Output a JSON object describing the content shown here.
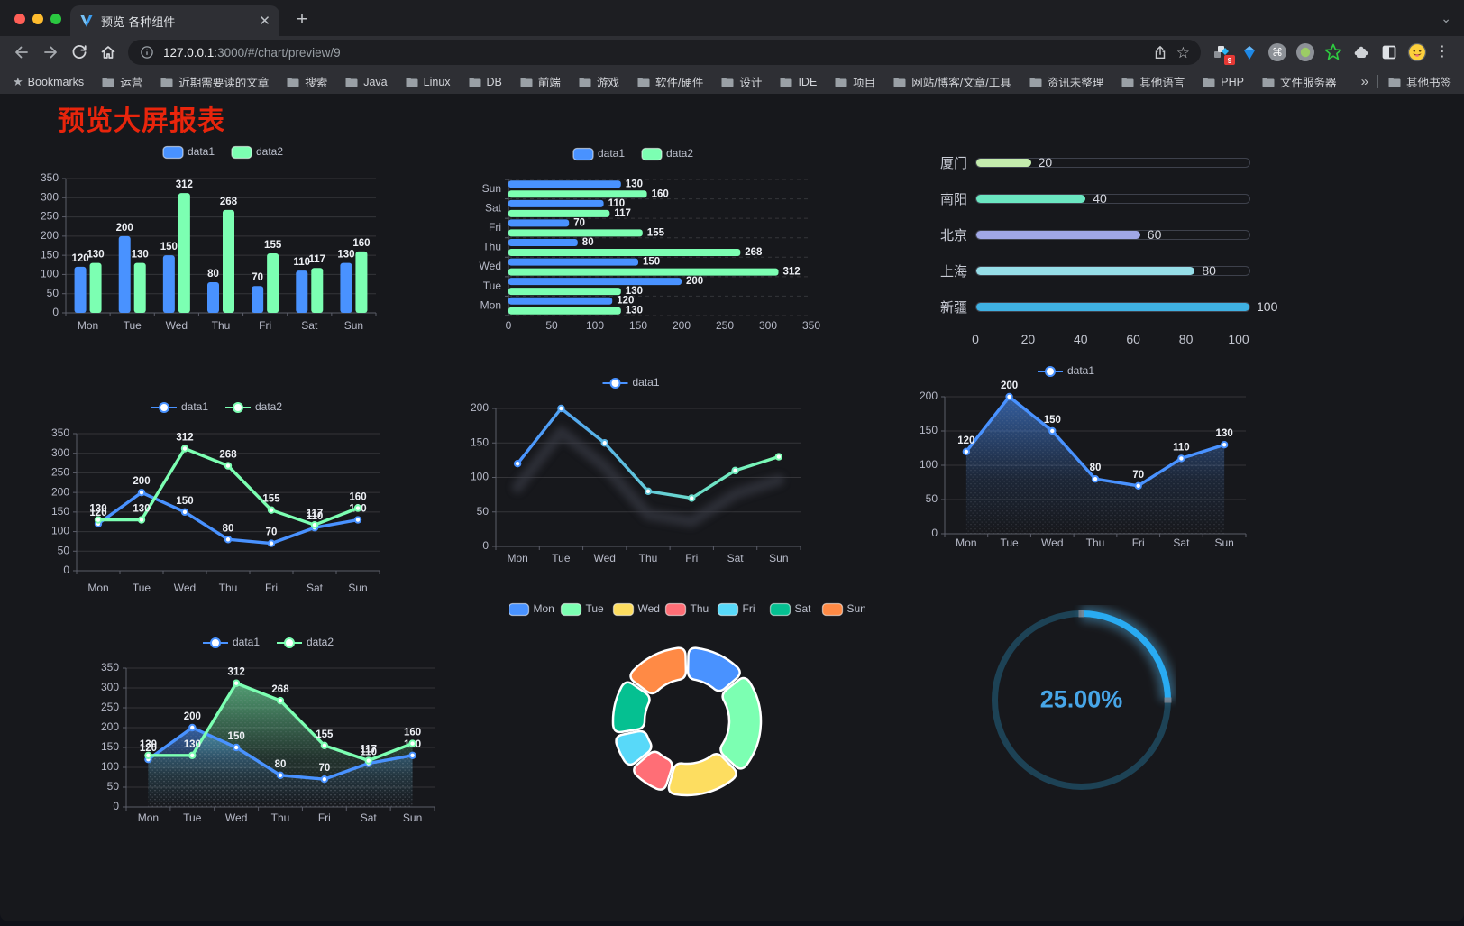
{
  "browser": {
    "tab": {
      "title": "预览-各种组件"
    },
    "url": {
      "host": "127.0.0.1",
      "path": ":3000/#/chart/preview/9"
    },
    "extension_badge": "9",
    "bookmarks_bar": {
      "root_label": "Bookmarks",
      "folders": [
        "运营",
        "近期需要读的文章",
        "搜索",
        "Java",
        "Linux",
        "DB",
        "前端",
        "游戏",
        "软件/硬件",
        "设计",
        "IDE",
        "项目",
        "网站/博客/文章/工具",
        "资讯未整理",
        "其他语言",
        "PHP",
        "文件服务器"
      ],
      "overflow_symbol": "»",
      "other_label": "其他书签"
    }
  },
  "page": {
    "title": "预览大屏报表",
    "title_color": "#e8250c",
    "background": "#17181c"
  },
  "chart_data": [
    {
      "id": "bar-grouped-vertical",
      "type": "bar",
      "categories": [
        "Mon",
        "Tue",
        "Wed",
        "Thu",
        "Fri",
        "Sat",
        "Sun"
      ],
      "series": [
        {
          "name": "data1",
          "color": "#4992ff",
          "values": [
            120,
            200,
            150,
            80,
            70,
            110,
            130
          ]
        },
        {
          "name": "data2",
          "color": "#7cffb2",
          "values": [
            130,
            130,
            312,
            268,
            155,
            117,
            160
          ]
        }
      ],
      "ylim": [
        0,
        350
      ],
      "ytick_step": 50,
      "show_labels": true,
      "legend_position": "top",
      "grid": true
    },
    {
      "id": "bar-grouped-horizontal",
      "type": "bar",
      "orientation": "horizontal",
      "categories": [
        "Mon",
        "Tue",
        "Wed",
        "Thu",
        "Fri",
        "Sat",
        "Sun"
      ],
      "series": [
        {
          "name": "data1",
          "color": "#4992ff",
          "values": [
            120,
            200,
            150,
            80,
            70,
            110,
            130
          ]
        },
        {
          "name": "data2",
          "color": "#7cffb2",
          "values": [
            130,
            130,
            312,
            268,
            155,
            117,
            160
          ]
        }
      ],
      "xlim": [
        0,
        350
      ],
      "xtick_step": 50,
      "show_labels": true,
      "legend_position": "top",
      "grid": true
    },
    {
      "id": "progress-bars",
      "type": "bar",
      "orientation": "progress",
      "categories": [
        "厦门",
        "南阳",
        "北京",
        "上海",
        "新疆"
      ],
      "values": [
        20,
        40,
        60,
        80,
        100
      ],
      "colors": [
        "#c4ebad",
        "#6be6c1",
        "#a0a7e6",
        "#96dee8",
        "#3fb1e3"
      ],
      "xlim": [
        0,
        100
      ],
      "xticks": [
        0,
        20,
        40,
        60,
        80,
        100
      ],
      "show_labels": true
    },
    {
      "id": "line-two-series",
      "type": "line",
      "categories": [
        "Mon",
        "Tue",
        "Wed",
        "Thu",
        "Fri",
        "Sat",
        "Sun"
      ],
      "series": [
        {
          "name": "data1",
          "color": "#4992ff",
          "values": [
            120,
            200,
            150,
            80,
            70,
            110,
            130
          ]
        },
        {
          "name": "data2",
          "color": "#7cffb2",
          "values": [
            130,
            130,
            312,
            268,
            155,
            117,
            160
          ]
        }
      ],
      "ylim": [
        0,
        350
      ],
      "ytick_step": 50,
      "show_labels": true,
      "legend_position": "top",
      "grid": true
    },
    {
      "id": "line-gradient",
      "type": "line",
      "categories": [
        "Mon",
        "Tue",
        "Wed",
        "Thu",
        "Fri",
        "Sat",
        "Sun"
      ],
      "series": [
        {
          "name": "data1",
          "gradient": [
            "#4992ff",
            "#7cffb2"
          ],
          "values": [
            120,
            200,
            150,
            80,
            70,
            110,
            130
          ]
        }
      ],
      "ylim": [
        0,
        200
      ],
      "ytick_step": 50,
      "show_labels": false,
      "shadow": true,
      "legend_position": "top",
      "grid": true
    },
    {
      "id": "area-single",
      "type": "area",
      "categories": [
        "Mon",
        "Tue",
        "Wed",
        "Thu",
        "Fri",
        "Sat",
        "Sun"
      ],
      "series": [
        {
          "name": "data1",
          "color": "#4992ff",
          "values": [
            120,
            200,
            150,
            80,
            70,
            110,
            130
          ],
          "area": true
        }
      ],
      "ylim": [
        0,
        200
      ],
      "ytick_step": 50,
      "show_labels": true,
      "legend_position": "top",
      "grid": true
    },
    {
      "id": "area-two-series",
      "type": "area",
      "categories": [
        "Mon",
        "Tue",
        "Wed",
        "Thu",
        "Fri",
        "Sat",
        "Sun"
      ],
      "series": [
        {
          "name": "data1",
          "color": "#4992ff",
          "values": [
            120,
            200,
            150,
            80,
            70,
            110,
            130
          ],
          "area": true
        },
        {
          "name": "data2",
          "color": "#7cffb2",
          "values": [
            130,
            130,
            312,
            268,
            155,
            117,
            160
          ],
          "area": true
        }
      ],
      "ylim": [
        0,
        350
      ],
      "ytick_step": 50,
      "show_labels": true,
      "legend_position": "top",
      "grid": true
    },
    {
      "id": "donut-week",
      "type": "pie",
      "donut": true,
      "legend_position": "top",
      "categories": [
        "Mon",
        "Tue",
        "Wed",
        "Thu",
        "Fri",
        "Sat",
        "Sun"
      ],
      "values": [
        120,
        200,
        150,
        80,
        70,
        110,
        130
      ],
      "colors": [
        "#4992ff",
        "#7cffb2",
        "#fddd60",
        "#ff6e76",
        "#58d9f9",
        "#05c091",
        "#ff8a45"
      ],
      "border_color": "#ffffff"
    },
    {
      "id": "gauge-percent",
      "type": "gauge",
      "value": 25,
      "max": 100,
      "label": "25.00%",
      "color": "#29abf2",
      "track_color": "#1d4255",
      "text_color": "#47a6e8"
    }
  ]
}
